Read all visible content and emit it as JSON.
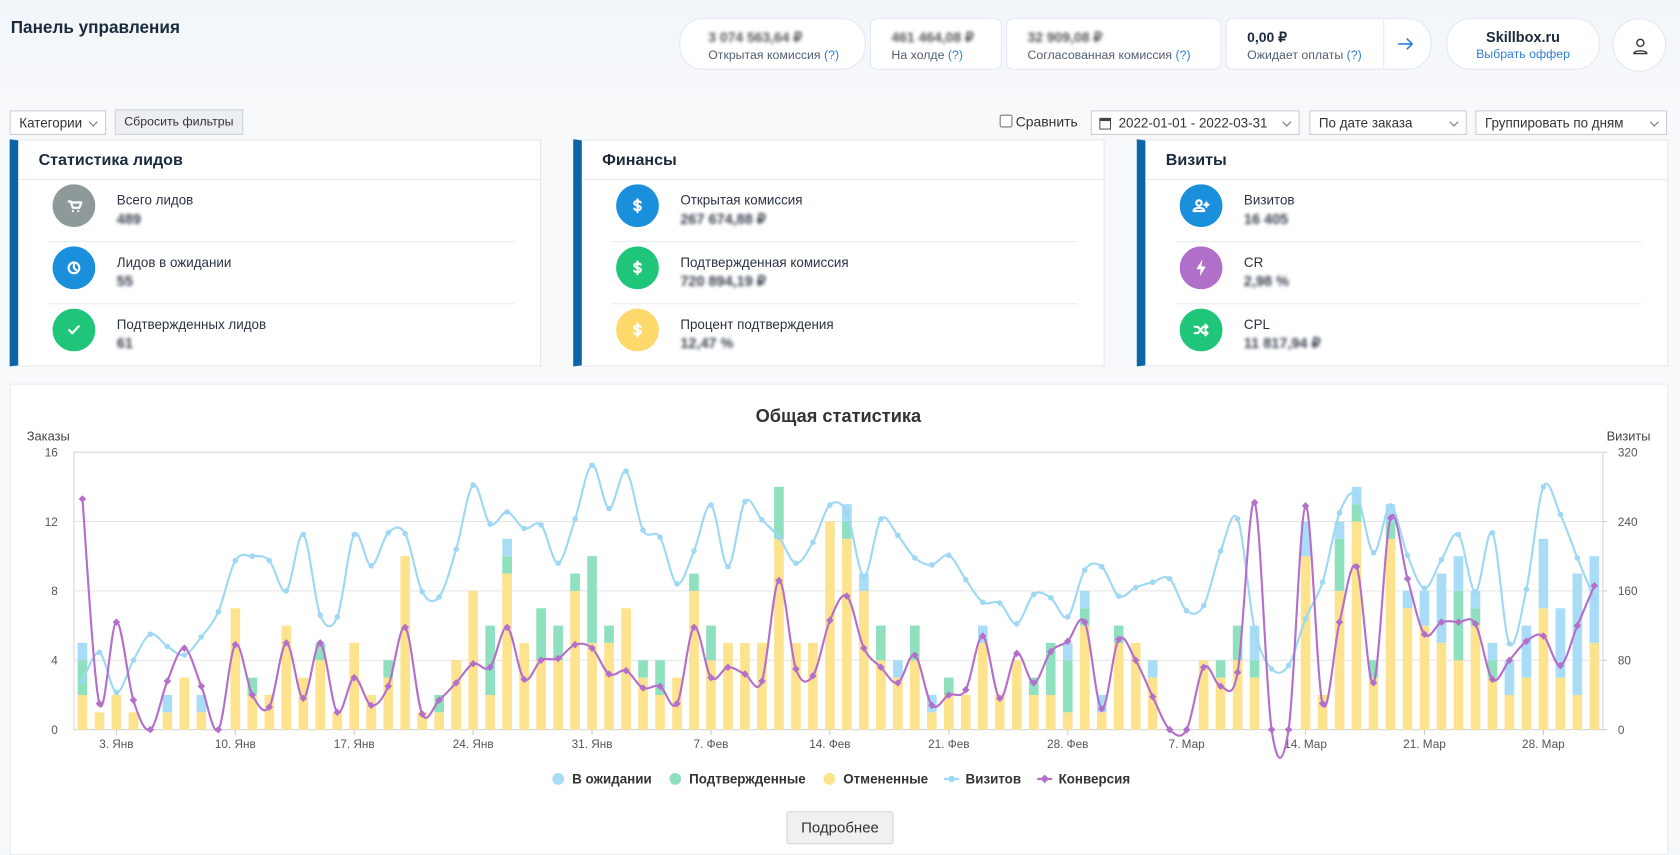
{
  "header": {
    "title": "Панель управления",
    "balances": [
      {
        "amount": "3 074 563,64 ₽",
        "label": "Открытая комиссия",
        "hint": "(?)"
      },
      {
        "amount": "461 464,08 ₽",
        "label": "На холде",
        "hint": "(?)"
      },
      {
        "amount": "32 909,08 ₽",
        "label": "Согласованная комиссия",
        "hint": "(?)"
      },
      {
        "amount": "0,00 ₽",
        "label": "Ожидает оплаты",
        "hint": "(?)"
      }
    ],
    "offer": {
      "name": "Skillbox.ru",
      "action": "Выбрать оффер"
    }
  },
  "filters": {
    "categories": "Категории",
    "reset": "Сбросить фильтры",
    "compare": "Сравнить",
    "date_range": "2022-01-01 - 2022-03-31",
    "date_mode": "По дате заказа",
    "grouping": "Группировать по дням"
  },
  "cards": [
    {
      "title": "Статистика лидов",
      "items": [
        {
          "label": "Всего лидов",
          "value": "489"
        },
        {
          "label": "Лидов в ожидании",
          "value": "55"
        },
        {
          "label": "Подтвержденных лидов",
          "value": "61"
        }
      ]
    },
    {
      "title": "Финансы",
      "items": [
        {
          "label": "Открытая комиссия",
          "value": "267 674,88 ₽"
        },
        {
          "label": "Подтвержденная комиссия",
          "value": "720 894,19 ₽"
        },
        {
          "label": "Процент подтверждения",
          "value": "12,47 %"
        }
      ]
    },
    {
      "title": "Визиты",
      "items": [
        {
          "label": "Визитов",
          "value": "16 405"
        },
        {
          "label": "CR",
          "value": "2,98 %"
        },
        {
          "label": "CPL",
          "value": "11 817,94 ₽"
        }
      ]
    }
  ],
  "chart_data": {
    "type": "bar",
    "stacked": true,
    "title": "Общая статистика",
    "y_label": "Заказы",
    "y2_label": "Визиты",
    "grid": true,
    "ylim": [
      0,
      16
    ],
    "yticks": [
      0,
      4,
      8,
      12,
      16
    ],
    "y2lim": [
      0,
      320
    ],
    "y2ticks": [
      0,
      80,
      160,
      240,
      320
    ],
    "categories": [
      null,
      null,
      "3. Янв",
      null,
      null,
      null,
      null,
      null,
      null,
      "10. Янв",
      null,
      null,
      null,
      null,
      null,
      null,
      "17. Янв",
      null,
      null,
      null,
      null,
      null,
      null,
      "24. Янв",
      null,
      null,
      null,
      null,
      null,
      null,
      "31. Янв",
      null,
      null,
      null,
      null,
      null,
      null,
      "7. Фев",
      null,
      null,
      null,
      null,
      null,
      null,
      "14. Фев",
      null,
      null,
      null,
      null,
      null,
      null,
      "21. Фев",
      null,
      null,
      null,
      null,
      null,
      null,
      "28. Фев",
      null,
      null,
      null,
      null,
      null,
      null,
      "7. Мар",
      null,
      null,
      null,
      null,
      null,
      null,
      "14. Мар",
      null,
      null,
      null,
      null,
      null,
      null,
      "21. Мар",
      null,
      null,
      null,
      null,
      null,
      null,
      "28. Мар",
      null,
      null,
      null
    ],
    "series": [
      {
        "name": "В ожидании",
        "color": "#a9dcf6",
        "values": [
          1,
          0,
          0,
          0,
          0,
          1,
          0,
          1,
          0,
          0,
          0,
          0,
          0,
          0,
          0,
          0,
          0,
          0,
          0,
          0,
          0,
          0,
          0,
          0,
          0,
          1,
          0,
          0,
          0,
          0,
          0,
          0,
          0,
          0,
          0,
          0,
          0,
          0,
          0,
          0,
          0,
          0,
          0,
          0,
          0,
          1,
          1,
          0,
          1,
          0,
          1,
          0,
          0,
          1,
          0,
          0,
          0,
          0,
          1,
          1,
          1,
          0,
          0,
          1,
          0,
          0,
          0,
          0,
          0,
          2,
          0,
          0,
          2,
          0,
          1,
          1,
          0,
          1,
          1,
          2,
          4,
          2,
          1,
          1,
          2,
          3,
          4,
          4,
          7,
          5
        ]
      },
      {
        "name": "Подтвержденные",
        "color": "#8fe0bf",
        "values": [
          2,
          0,
          0,
          0,
          0,
          0,
          0,
          0,
          0,
          0,
          1,
          0,
          0,
          0,
          1,
          0,
          0,
          0,
          1,
          0,
          0,
          1,
          0,
          0,
          4,
          1,
          0,
          3,
          2,
          1,
          5,
          1,
          0,
          1,
          2,
          0,
          1,
          2,
          0,
          0,
          0,
          3,
          0,
          0,
          0,
          1,
          0,
          2,
          0,
          2,
          0,
          1,
          0,
          0,
          0,
          0,
          1,
          3,
          3,
          1,
          0,
          1,
          0,
          0,
          0,
          0,
          0,
          1,
          2,
          1,
          0,
          0,
          0,
          0,
          3,
          1,
          1,
          1,
          0,
          0,
          0,
          4,
          1,
          1,
          0,
          0,
          0,
          0,
          0,
          0
        ]
      },
      {
        "name": "Отмененные",
        "color": "#fde38d",
        "values": [
          2,
          1,
          2,
          1,
          0,
          1,
          3,
          1,
          0,
          7,
          2,
          2,
          6,
          3,
          4,
          1,
          5,
          2,
          3,
          10,
          1,
          1,
          4,
          8,
          2,
          9,
          5,
          4,
          4,
          8,
          5,
          5,
          7,
          3,
          2,
          3,
          8,
          4,
          5,
          5,
          5,
          11,
          5,
          5,
          12,
          11,
          8,
          4,
          3,
          4,
          1,
          2,
          2,
          5,
          2,
          4,
          2,
          2,
          1,
          6,
          1,
          5,
          5,
          3,
          0,
          0,
          4,
          3,
          4,
          3,
          0,
          0,
          10,
          2,
          8,
          12,
          3,
          11,
          7,
          6,
          5,
          4,
          6,
          3,
          2,
          3,
          7,
          3,
          2,
          5
        ]
      },
      {
        "name": "Визитов",
        "type": "line",
        "axis": "y2",
        "color": "#9ed8f5",
        "values": [
          56,
          89,
          43,
          80,
          110,
          96,
          86,
          107,
          136,
          195,
          200,
          195,
          160,
          225,
          132,
          130,
          225,
          189,
          227,
          226,
          159,
          153,
          208,
          282,
          237,
          251,
          232,
          236,
          192,
          243,
          305,
          255,
          298,
          230,
          222,
          168,
          206,
          259,
          188,
          263,
          242,
          222,
          192,
          216,
          259,
          250,
          177,
          243,
          224,
          198,
          190,
          201,
          173,
          147,
          146,
          122,
          156,
          152,
          130,
          184,
          188,
          154,
          164,
          170,
          174,
          137,
          143,
          206,
          243,
          116,
          70,
          74,
          128,
          170,
          250,
          271,
          204,
          258,
          201,
          163,
          196,
          225,
          159,
          227,
          99,
          162,
          280,
          248,
          198,
          151
        ]
      },
      {
        "name": "Конверсия",
        "type": "line",
        "color": "#b46fcb",
        "values": [
          13.3,
          1.5,
          6.2,
          1.7,
          0,
          2.8,
          4.7,
          2.5,
          0,
          4.9,
          2,
          1.3,
          5,
          1.8,
          5,
          1,
          3,
          1.4,
          2.5,
          5.9,
          0.9,
          1.7,
          2.7,
          3.8,
          3.6,
          5.9,
          2.9,
          4,
          4.1,
          4.9,
          4.7,
          3.2,
          3.4,
          2.4,
          2.5,
          1.5,
          5.9,
          3,
          3.6,
          3.2,
          2.8,
          8.6,
          3.5,
          3.1,
          6.3,
          7.7,
          4.7,
          3.6,
          2.7,
          4.3,
          1.4,
          2,
          2.3,
          5.4,
          1.8,
          4.4,
          2.7,
          4.5,
          5.1,
          6.2,
          1.2,
          5.2,
          4,
          1.9,
          0,
          0,
          3.6,
          2.5,
          3.3,
          13.1,
          0,
          0,
          12.9,
          1.5,
          6.2,
          9.4,
          2.7,
          12.2,
          8.7,
          5.5,
          6.2,
          6.2,
          6.1,
          2.9,
          4,
          5.1,
          5.4,
          3.7,
          6,
          8.3
        ]
      }
    ],
    "more": "Подробнее"
  }
}
